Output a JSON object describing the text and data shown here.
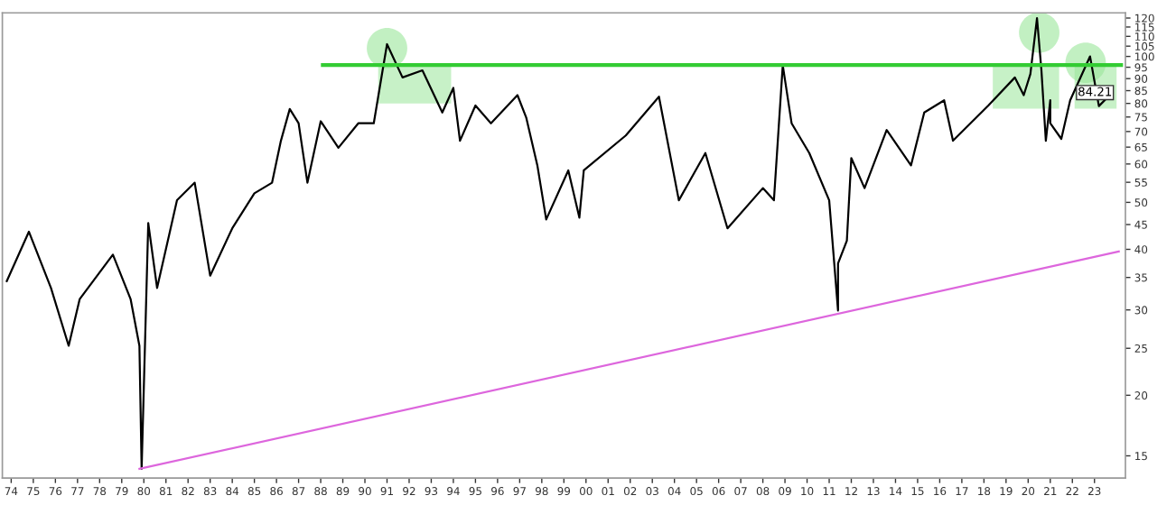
{
  "chart_data": {
    "type": "line",
    "log": "y",
    "grid": false,
    "legend": false,
    "marker": "none",
    "line_style": "solid",
    "xlim": [
      1973.6,
      2024.4
    ],
    "ylim": [
      13.5,
      123
    ],
    "xticks": [
      {
        "value": 1974,
        "label": "74"
      },
      {
        "value": 1975,
        "label": "75"
      },
      {
        "value": 1976,
        "label": "76"
      },
      {
        "value": 1977,
        "label": "77"
      },
      {
        "value": 1978,
        "label": "78"
      },
      {
        "value": 1979,
        "label": "79"
      },
      {
        "value": 1980,
        "label": "80"
      },
      {
        "value": 1981,
        "label": "81"
      },
      {
        "value": 1982,
        "label": "82"
      },
      {
        "value": 1983,
        "label": "83"
      },
      {
        "value": 1984,
        "label": "84"
      },
      {
        "value": 1985,
        "label": "85"
      },
      {
        "value": 1986,
        "label": "86"
      },
      {
        "value": 1987,
        "label": "87"
      },
      {
        "value": 1988,
        "label": "88"
      },
      {
        "value": 1989,
        "label": "89"
      },
      {
        "value": 1990,
        "label": "90"
      },
      {
        "value": 1991,
        "label": "91"
      },
      {
        "value": 1992,
        "label": "92"
      },
      {
        "value": 1993,
        "label": "93"
      },
      {
        "value": 1994,
        "label": "94"
      },
      {
        "value": 1995,
        "label": "95"
      },
      {
        "value": 1996,
        "label": "96"
      },
      {
        "value": 1997,
        "label": "97"
      },
      {
        "value": 1998,
        "label": "98"
      },
      {
        "value": 1999,
        "label": "99"
      },
      {
        "value": 2000,
        "label": "00"
      },
      {
        "value": 2001,
        "label": "01"
      },
      {
        "value": 2002,
        "label": "02"
      },
      {
        "value": 2003,
        "label": "03"
      },
      {
        "value": 2004,
        "label": "04"
      },
      {
        "value": 2005,
        "label": "05"
      },
      {
        "value": 2006,
        "label": "06"
      },
      {
        "value": 2007,
        "label": "07"
      },
      {
        "value": 2008,
        "label": "08"
      },
      {
        "value": 2009,
        "label": "09"
      },
      {
        "value": 2010,
        "label": "10"
      },
      {
        "value": 2011,
        "label": "11"
      },
      {
        "value": 2012,
        "label": "12"
      },
      {
        "value": 2013,
        "label": "13"
      },
      {
        "value": 2014,
        "label": "14"
      },
      {
        "value": 2015,
        "label": "15"
      },
      {
        "value": 2016,
        "label": "16"
      },
      {
        "value": 2017,
        "label": "17"
      },
      {
        "value": 2018,
        "label": "18"
      },
      {
        "value": 2019,
        "label": "19"
      },
      {
        "value": 2020,
        "label": "20"
      },
      {
        "value": 2021,
        "label": "21"
      },
      {
        "value": 2022,
        "label": "22"
      },
      {
        "value": 2023,
        "label": "23"
      }
    ],
    "yticks": [
      15,
      20,
      25,
      30,
      35,
      40,
      45,
      50,
      55,
      60,
      65,
      70,
      75,
      80,
      85,
      90,
      95,
      100,
      105,
      110,
      115,
      120
    ],
    "series": [
      {
        "color": "#000000",
        "x": [
          1973.8,
          1974.8,
          1975.8,
          1976.6,
          1977.1,
          1978.6,
          1979.4,
          1979.8,
          1979.9,
          1980.2,
          1980.6,
          1981.5,
          1982.3,
          1983.0,
          1984.0,
          1985.0,
          1985.8,
          1986.2,
          1986.6,
          1987.0,
          1987.4,
          1988.0,
          1988.8,
          1989.7,
          1990.4,
          1990.8,
          1991.0,
          1991.7,
          1992.6,
          1993.5,
          1994.0,
          1994.3,
          1995.0,
          1995.7,
          1996.9,
          1997.3,
          1997.8,
          1998.2,
          1999.2,
          1999.7,
          1999.9,
          2001.8,
          2003.3,
          2004.2,
          2005.4,
          2006.4,
          2008.0,
          2008.5,
          2008.9,
          2009.3,
          2010.1,
          2011.0,
          2011.4,
          2011.4,
          2011.8,
          2012.0,
          2012.6,
          2013.6,
          2014.7,
          2015.3,
          2016.2,
          2016.6,
          2018.2,
          2019.4,
          2019.8,
          2020.1,
          2020.4,
          2020.6,
          2020.8,
          2021.0,
          2021.0,
          2021.5,
          2021.9,
          2022.8,
          2023.2,
          2023.8
        ],
        "values": [
          34.4,
          43.5,
          33.3,
          25.3,
          31.6,
          39.0,
          31.6,
          25.3,
          14.1,
          45.3,
          33.3,
          50.5,
          54.9,
          35.3,
          44.2,
          52.2,
          54.9,
          67.0,
          77.9,
          72.8,
          54.9,
          73.5,
          64.8,
          72.8,
          72.8,
          93.6,
          106,
          90.5,
          93.6,
          76.6,
          86.1,
          67.0,
          79.2,
          72.8,
          83.2,
          74.7,
          59.6,
          46.1,
          58.2,
          46.5,
          58.2,
          68.7,
          82.6,
          50.5,
          63.2,
          44.2,
          53.5,
          50.5,
          95.9,
          72.8,
          63.2,
          50.5,
          29.9,
          37.4,
          41.7,
          61.7,
          53.5,
          70.5,
          59.6,
          76.6,
          81.2,
          67.0,
          79.2,
          90.5,
          83.2,
          92.0,
          120,
          93.6,
          67.0,
          81.2,
          72.8,
          67.6,
          81.2,
          100,
          79,
          84.21
        ]
      },
      {
        "color": "#33cc33",
        "x": [
          1988.1,
          2024.2
        ],
        "values": [
          96,
          96
        ]
      },
      {
        "color": "#dd66dd",
        "x": [
          1979.8,
          2024.1
        ],
        "values": [
          14.1,
          39.6
        ]
      },
      {
        "type": "scatter",
        "marker": "circle",
        "color": "#99e699",
        "x": [
          1991.0,
          2020.5,
          2022.6
        ],
        "values": [
          104,
          112,
          97
        ]
      }
    ],
    "annotations": [
      {
        "text": "84.21",
        "x": 2023.8,
        "y": 84.21
      }
    ]
  }
}
